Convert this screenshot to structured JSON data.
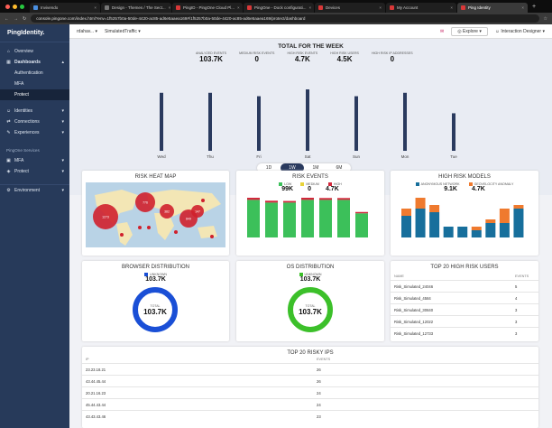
{
  "browser": {
    "tabs": [
      {
        "title": "Invivendo",
        "color": "#4a90e2"
      },
      {
        "title": "Design - Themes / The Sect...",
        "color": "#777777"
      },
      {
        "title": "PingID - PingOne Cloud Pl...",
        "color": "#d93838"
      },
      {
        "title": "PingOne - Dock configurati...",
        "color": "#d93838"
      },
      {
        "title": "Devices",
        "color": "#d93838"
      },
      {
        "title": "My Account",
        "color": "#d93838"
      },
      {
        "title": "Ping Identity",
        "color": "#d93838"
      }
    ],
    "url": "console.pingone.com/index.html?env=1f5257b0a-50de-4420-ac85-ad6e5aaea169#/1f5257b0a-50de-4420-ac85-ad6e5aaea169/protect/dashboard"
  },
  "sidebar": {
    "logo": "PingIdentity.",
    "items": [
      {
        "label": "Overview",
        "icon": "⌂"
      },
      {
        "label": "Dashboards",
        "icon": "▦"
      },
      {
        "label": "Authentication"
      },
      {
        "label": "MFA"
      },
      {
        "label": "Protect"
      },
      {
        "label": "Identities",
        "icon": "☺"
      },
      {
        "label": "Connections",
        "icon": "⇄"
      },
      {
        "label": "Experiences",
        "icon": "✎"
      }
    ],
    "section": "PingOne Services",
    "services": [
      {
        "label": "MFA",
        "icon": "▣"
      },
      {
        "label": "Protect",
        "icon": "◈"
      }
    ],
    "environment": {
      "label": "Environment",
      "icon": "⚙"
    }
  },
  "topbar": {
    "env": "rdahav...",
    "app": "SimulatedTraffic",
    "explore": "Explore",
    "user": "Interaction Designer"
  },
  "week": {
    "title": "TOTAL FOR THE WEEK",
    "stats": [
      {
        "label": "ANALYZED EVENTS",
        "value": "103.7K"
      },
      {
        "label": "MEDIUM RISK EVENTS",
        "value": "0"
      },
      {
        "label": "HIGH RISK EVENTS",
        "value": "4.7K"
      },
      {
        "label": "HIGH RISK USERS",
        "value": "4.5K"
      },
      {
        "label": "HIGH RISK IP ADDRESSES",
        "value": "0"
      }
    ],
    "days": [
      "Wed",
      "Thu",
      "Fri",
      "Sat",
      "Sun",
      "Mon",
      "Tue"
    ],
    "ranges": [
      "1D",
      "1W",
      "1M",
      "6M"
    ],
    "selected_range": "1W"
  },
  "chart_data": [
    {
      "type": "bar",
      "title": "",
      "categories": [
        "Wed",
        "Thu",
        "Fri",
        "Sat",
        "Sun",
        "Mon",
        "Tue"
      ],
      "values": [
        17,
        17,
        16,
        18,
        16,
        17,
        11
      ]
    },
    {
      "type": "bar",
      "title": "RISK EVENTS",
      "legend": [
        "LOW",
        "MEDIUM",
        "HIGH"
      ],
      "totals": [
        "99K",
        "0",
        "4.7K"
      ],
      "categories": [
        "1",
        "2",
        "3",
        "4",
        "5",
        "6",
        "7"
      ],
      "series": [
        {
          "name": "LOW",
          "values": [
            14,
            13,
            13,
            14,
            14,
            14,
            9
          ]
        },
        {
          "name": "HIGH",
          "values": [
            0.8,
            0.7,
            0.6,
            0.8,
            0.7,
            0.7,
            0.5
          ]
        }
      ]
    },
    {
      "type": "bar",
      "title": "HIGH RISK MODELS",
      "legend": [
        "ANONYMOUS NETWORK",
        "GEOVELOCITY ANOMALY"
      ],
      "totals": [
        "9.1K",
        "4.7K"
      ],
      "categories": [
        "1",
        "2",
        "3",
        "4",
        "5",
        "6",
        "7",
        "8",
        "9"
      ],
      "series": [
        {
          "name": "ANONYMOUS NETWORK",
          "values": [
            6,
            8,
            7,
            3,
            3,
            2,
            4,
            4,
            8
          ]
        },
        {
          "name": "GEOVELOCITY ANOMALY",
          "values": [
            2,
            3,
            2,
            0,
            0,
            1,
            1,
            4,
            1
          ]
        }
      ]
    },
    {
      "type": "pie",
      "title": "BROWSER DISTRIBUTION",
      "legend": [
        "UNKNOWN"
      ],
      "center_label": "TOTAL",
      "center_value": "103.7K",
      "values": [
        100
      ]
    },
    {
      "type": "pie",
      "title": "OS DISTRIBUTION",
      "legend": [
        "UNKNOWN"
      ],
      "center_label": "TOTAL",
      "center_value": "103.7K",
      "values": [
        100
      ]
    }
  ],
  "heatmap": {
    "title": "RISK HEAT MAP",
    "bubbles": [
      "1273",
      "776",
      "382",
      "147",
      "849"
    ]
  },
  "users": {
    "title": "TOP 20 HIGH RISK USERS",
    "cols": [
      "NAME",
      "EVENTS"
    ],
    "rows": [
      [
        "Risk_Simulated_24046",
        "5"
      ],
      [
        "Risk_Simulated_4584",
        "4"
      ],
      [
        "Risk_Simulated_30840",
        "3"
      ],
      [
        "Risk_Simulated_12022",
        "3"
      ],
      [
        "Risk_Simulated_12733",
        "3"
      ]
    ]
  },
  "ips": {
    "title": "TOP 20 RISKY IPS",
    "cols": [
      "IP",
      "EVENTS"
    ],
    "rows": [
      [
        "23.23.18.21",
        "26"
      ],
      [
        "43.44.45.44",
        "26"
      ],
      [
        "20.21.16.23",
        "24"
      ],
      [
        "45.44.43.44",
        "24"
      ],
      [
        "43.43.43.46",
        "23"
      ]
    ]
  },
  "colors": {
    "low": "#3cc05a",
    "medium": "#e8d33a",
    "high": "#d2283c",
    "anon": "#176f9c",
    "geo": "#ef7a2e",
    "bar": "#2a3a5e"
  }
}
